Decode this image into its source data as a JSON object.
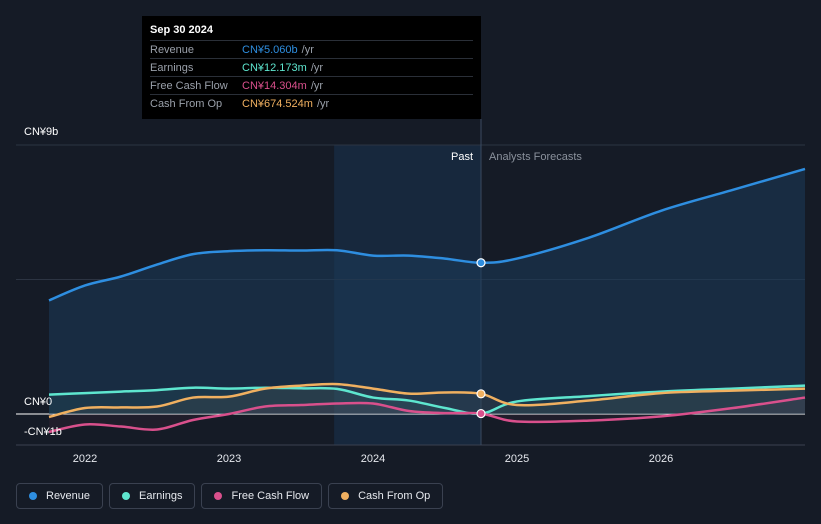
{
  "tooltip": {
    "date": "Sep 30 2024",
    "rows": [
      {
        "label": "Revenue",
        "value": "CN¥5.060b",
        "unit": "/yr",
        "color": "#2e8ee0"
      },
      {
        "label": "Earnings",
        "value": "CN¥12.173m",
        "unit": "/yr",
        "color": "#5ee6cf"
      },
      {
        "label": "Free Cash Flow",
        "value": "CN¥14.304m",
        "unit": "/yr",
        "color": "#d9508c"
      },
      {
        "label": "Cash From Op",
        "value": "CN¥674.524m",
        "unit": "/yr",
        "color": "#f0b060"
      }
    ]
  },
  "legend": [
    {
      "label": "Revenue",
      "color": "#2e8ee0"
    },
    {
      "label": "Earnings",
      "color": "#5ee6cf"
    },
    {
      "label": "Free Cash Flow",
      "color": "#d9508c"
    },
    {
      "label": "Cash From Op",
      "color": "#f0b060"
    }
  ],
  "chart_data": {
    "type": "line",
    "y_labels": {
      "top": "CN¥9b",
      "zero": "CN¥0",
      "bottom": "-CN¥1b"
    },
    "ylim": [
      -1,
      9
    ],
    "xlim": [
      2021.7,
      2027.0
    ],
    "x_ticks": [
      {
        "label": "2022",
        "value": 2022
      },
      {
        "label": "2023",
        "value": 2023
      },
      {
        "label": "2024",
        "value": 2024
      },
      {
        "label": "2025",
        "value": 2025
      },
      {
        "label": "2026",
        "value": 2026
      }
    ],
    "past_label": "Past",
    "forecast_label": "Analysts Forecasts",
    "highlight_range": [
      2023.73,
      2024.75
    ],
    "past_end": 2024.75,
    "series": [
      {
        "name": "Revenue",
        "color": "#2e8ee0",
        "fill": true,
        "points": [
          [
            2021.75,
            3.8
          ],
          [
            2022.0,
            4.3
          ],
          [
            2022.25,
            4.6
          ],
          [
            2022.5,
            5.0
          ],
          [
            2022.75,
            5.35
          ],
          [
            2023.0,
            5.45
          ],
          [
            2023.25,
            5.48
          ],
          [
            2023.5,
            5.47
          ],
          [
            2023.75,
            5.48
          ],
          [
            2024.0,
            5.3
          ],
          [
            2024.25,
            5.3
          ],
          [
            2024.5,
            5.2
          ],
          [
            2024.75,
            5.06
          ],
          [
            2025.0,
            5.2
          ],
          [
            2025.5,
            5.9
          ],
          [
            2026.0,
            6.8
          ],
          [
            2026.5,
            7.5
          ],
          [
            2027.0,
            8.2
          ]
        ]
      },
      {
        "name": "Earnings",
        "color": "#5ee6cf",
        "fill": false,
        "points": [
          [
            2021.75,
            0.65
          ],
          [
            2022.0,
            0.7
          ],
          [
            2022.25,
            0.75
          ],
          [
            2022.5,
            0.8
          ],
          [
            2022.75,
            0.88
          ],
          [
            2023.0,
            0.85
          ],
          [
            2023.25,
            0.88
          ],
          [
            2023.5,
            0.86
          ],
          [
            2023.75,
            0.84
          ],
          [
            2024.0,
            0.55
          ],
          [
            2024.25,
            0.45
          ],
          [
            2024.5,
            0.2
          ],
          [
            2024.75,
            0.012
          ],
          [
            2025.0,
            0.42
          ],
          [
            2025.5,
            0.6
          ],
          [
            2026.0,
            0.75
          ],
          [
            2026.5,
            0.85
          ],
          [
            2027.0,
            0.95
          ]
        ]
      },
      {
        "name": "Free Cash Flow",
        "color": "#d9508c",
        "fill": false,
        "points": [
          [
            2021.75,
            -0.6
          ],
          [
            2022.0,
            -0.35
          ],
          [
            2022.25,
            -0.42
          ],
          [
            2022.5,
            -0.52
          ],
          [
            2022.75,
            -0.2
          ],
          [
            2023.0,
            0.0
          ],
          [
            2023.25,
            0.25
          ],
          [
            2023.5,
            0.3
          ],
          [
            2023.75,
            0.35
          ],
          [
            2024.0,
            0.35
          ],
          [
            2024.25,
            0.1
          ],
          [
            2024.5,
            0.03
          ],
          [
            2024.75,
            0.014
          ],
          [
            2025.0,
            -0.25
          ],
          [
            2025.5,
            -0.22
          ],
          [
            2026.0,
            -0.08
          ],
          [
            2026.5,
            0.2
          ],
          [
            2027.0,
            0.55
          ]
        ]
      },
      {
        "name": "Cash From Op",
        "color": "#f0b060",
        "fill": false,
        "points": [
          [
            2021.75,
            -0.1
          ],
          [
            2022.0,
            0.2
          ],
          [
            2022.25,
            0.22
          ],
          [
            2022.5,
            0.25
          ],
          [
            2022.75,
            0.55
          ],
          [
            2023.0,
            0.58
          ],
          [
            2023.25,
            0.85
          ],
          [
            2023.5,
            0.95
          ],
          [
            2023.75,
            1.0
          ],
          [
            2024.0,
            0.85
          ],
          [
            2024.25,
            0.68
          ],
          [
            2024.5,
            0.72
          ],
          [
            2024.75,
            0.675
          ],
          [
            2025.0,
            0.3
          ],
          [
            2025.5,
            0.45
          ],
          [
            2026.0,
            0.7
          ],
          [
            2026.5,
            0.78
          ],
          [
            2027.0,
            0.85
          ]
        ]
      }
    ]
  }
}
